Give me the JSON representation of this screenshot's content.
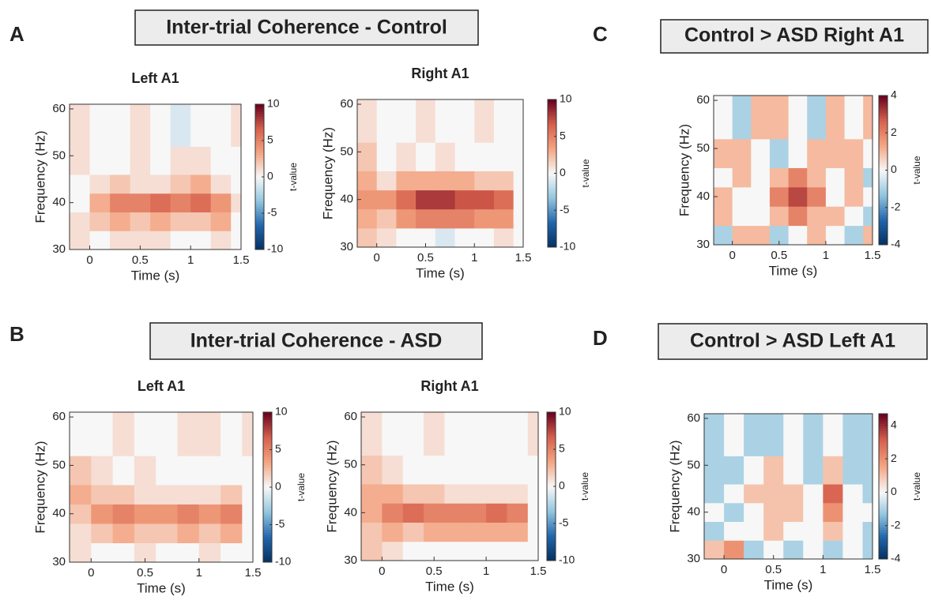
{
  "figure": {
    "colormap": [
      "#053061",
      "#2166ac",
      "#92c5de",
      "#f7f7f7",
      "#f4a582",
      "#d6604d",
      "#67001f"
    ],
    "panels": [
      {
        "label": "A",
        "title": "Inter-trial Coherence - Control"
      },
      {
        "label": "C",
        "title": "Control > ASD Right A1"
      },
      {
        "label": "B",
        "title": "Inter-trial Coherence - ASD"
      },
      {
        "label": "D",
        "title": "Control > ASD Left A1"
      }
    ]
  },
  "chart_data": [
    {
      "type": "heatmap",
      "title": "Left A1",
      "xlabel": "Time (s)",
      "ylabel": "Frequency (Hz)",
      "x_edges": [
        -0.2,
        0,
        0.2,
        0.4,
        0.6,
        0.8,
        1,
        1.2,
        1.4,
        1.5
      ],
      "y_edges": [
        30,
        34,
        38,
        42,
        46,
        52,
        61
      ],
      "z": [
        [
          1,
          0,
          1,
          1,
          1,
          0,
          0,
          1,
          0
        ],
        [
          1,
          2,
          3,
          2,
          3,
          2,
          2,
          3,
          0
        ],
        [
          0,
          3,
          5,
          5,
          6,
          5,
          6,
          4,
          1
        ],
        [
          0,
          1,
          2,
          1,
          1,
          2,
          3,
          1,
          0
        ],
        [
          1,
          0,
          0,
          1,
          0,
          1,
          1,
          0,
          0
        ],
        [
          1,
          0,
          0,
          1,
          0,
          -1,
          0,
          0,
          1
        ]
      ],
      "xlim": [
        -0.2,
        1.5
      ],
      "ylim": [
        30,
        61
      ],
      "xticks": [
        0,
        0.5,
        1,
        1.5
      ],
      "yticks": [
        30,
        40,
        50,
        60
      ],
      "colorbar": {
        "label": "t-value",
        "lim": [
          -10,
          10
        ],
        "ticks": [
          -10,
          -5,
          0,
          5,
          10
        ]
      }
    },
    {
      "type": "heatmap",
      "title": "Right A1",
      "xlabel": "Time (s)",
      "ylabel": "Frequency (Hz)",
      "x_edges": [
        -0.2,
        0,
        0.2,
        0.4,
        0.6,
        0.8,
        1,
        1.2,
        1.4,
        1.5
      ],
      "y_edges": [
        30,
        34,
        38,
        42,
        46,
        52,
        61
      ],
      "z": [
        [
          2,
          1,
          0,
          0,
          -1,
          0,
          0,
          1,
          0
        ],
        [
          3,
          2,
          4,
          5,
          5,
          5,
          4,
          4,
          0
        ],
        [
          4,
          4,
          6,
          8,
          8,
          7,
          7,
          6,
          0
        ],
        [
          3,
          1,
          3,
          3,
          3,
          3,
          2,
          2,
          0
        ],
        [
          2,
          0,
          1,
          0,
          1,
          0,
          0,
          0,
          0
        ],
        [
          1,
          0,
          0,
          1,
          0,
          0,
          1,
          0,
          0
        ]
      ],
      "xlim": [
        -0.2,
        1.5
      ],
      "ylim": [
        30,
        61
      ],
      "xticks": [
        0,
        0.5,
        1,
        1.5
      ],
      "yticks": [
        30,
        40,
        50,
        60
      ],
      "colorbar": {
        "label": "t-value",
        "lim": [
          -10,
          10
        ],
        "ticks": [
          -10,
          -5,
          0,
          5,
          10
        ]
      }
    },
    {
      "type": "heatmap",
      "xlabel": "Time (s)",
      "ylabel": "Frequency (Hz)",
      "x_edges": [
        -0.2,
        0,
        0.2,
        0.4,
        0.6,
        0.8,
        1,
        1.2,
        1.4,
        1.5
      ],
      "y_edges": [
        30,
        34,
        38,
        42,
        46,
        52,
        61
      ],
      "z": [
        [
          -1,
          1,
          1,
          -1,
          0,
          1,
          0,
          -1,
          1
        ],
        [
          1,
          0,
          0,
          1,
          2,
          1,
          1,
          0,
          -1
        ],
        [
          1,
          0,
          0,
          2,
          3,
          2,
          0,
          1,
          0
        ],
        [
          0,
          1,
          0,
          1,
          2,
          1,
          0,
          1,
          -1
        ],
        [
          1,
          1,
          0,
          -1,
          0,
          1,
          1,
          1,
          0
        ],
        [
          0,
          -1,
          1,
          1,
          0,
          -1,
          1,
          0,
          1
        ]
      ],
      "xlim": [
        -0.2,
        1.5
      ],
      "ylim": [
        30,
        61
      ],
      "xticks": [
        0,
        0.5,
        1,
        1.5
      ],
      "yticks": [
        30,
        40,
        50,
        60
      ],
      "colorbar": {
        "label": "t-value",
        "lim": [
          -4,
          4
        ],
        "ticks": [
          -4,
          -2,
          0,
          2,
          4
        ]
      }
    },
    {
      "type": "heatmap",
      "title": "Left A1",
      "xlabel": "Time (s)",
      "ylabel": "Frequency (Hz)",
      "x_edges": [
        -0.2,
        0,
        0.2,
        0.4,
        0.6,
        0.8,
        1,
        1.2,
        1.4,
        1.5
      ],
      "y_edges": [
        30,
        34,
        38,
        42,
        46,
        52,
        61
      ],
      "z": [
        [
          1,
          0,
          0,
          1,
          0,
          0,
          1,
          0,
          0
        ],
        [
          1,
          2,
          3,
          2,
          2,
          3,
          2,
          3,
          0
        ],
        [
          2,
          4,
          5,
          4,
          4,
          5,
          4,
          5,
          0
        ],
        [
          3,
          2,
          2,
          1,
          1,
          1,
          1,
          2,
          0
        ],
        [
          2,
          1,
          0,
          1,
          0,
          0,
          0,
          0,
          0
        ],
        [
          0,
          0,
          1,
          0,
          0,
          1,
          1,
          0,
          1
        ]
      ],
      "xlim": [
        -0.2,
        1.5
      ],
      "ylim": [
        30,
        61
      ],
      "xticks": [
        0,
        0.5,
        1,
        1.5
      ],
      "yticks": [
        30,
        40,
        50,
        60
      ],
      "colorbar": {
        "label": "t-value",
        "lim": [
          -10,
          10
        ],
        "ticks": [
          -10,
          -5,
          0,
          5,
          10
        ]
      }
    },
    {
      "type": "heatmap",
      "title": "Right A1",
      "xlabel": "Time (s)",
      "ylabel": "Frequency (Hz)",
      "x_edges": [
        -0.2,
        0,
        0.2,
        0.4,
        0.6,
        0.8,
        1,
        1.2,
        1.4,
        1.5
      ],
      "y_edges": [
        30,
        34,
        38,
        42,
        46,
        52,
        61
      ],
      "z": [
        [
          2,
          1,
          0,
          0,
          0,
          0,
          0,
          0,
          0
        ],
        [
          2,
          3,
          2,
          3,
          3,
          3,
          3,
          3,
          0
        ],
        [
          3,
          5,
          6,
          5,
          5,
          5,
          6,
          5,
          0
        ],
        [
          3,
          3,
          2,
          2,
          1,
          1,
          1,
          1,
          0
        ],
        [
          2,
          1,
          0,
          0,
          0,
          0,
          0,
          0,
          0
        ],
        [
          1,
          0,
          0,
          1,
          0,
          0,
          0,
          0,
          1
        ]
      ],
      "xlim": [
        -0.2,
        1.5
      ],
      "ylim": [
        30,
        61
      ],
      "xticks": [
        0,
        0.5,
        1,
        1.5
      ],
      "yticks": [
        30,
        40,
        50,
        60
      ],
      "colorbar": {
        "label": "t-value",
        "lim": [
          -10,
          10
        ],
        "ticks": [
          -10,
          -5,
          0,
          5,
          10
        ]
      }
    },
    {
      "type": "heatmap",
      "xlabel": "Time (s)",
      "ylabel": "Frequency (Hz)",
      "x_edges": [
        -0.2,
        0,
        0.2,
        0.4,
        0.6,
        0.8,
        1,
        1.2,
        1.4,
        1.5
      ],
      "y_edges": [
        30,
        34,
        38,
        42,
        46,
        52,
        61
      ],
      "z": [
        [
          1,
          2,
          -1,
          0,
          -1,
          0,
          -1,
          0,
          -1
        ],
        [
          -1,
          0,
          0,
          1,
          0,
          0,
          1,
          0,
          -1
        ],
        [
          0,
          -1,
          0,
          1,
          1,
          0,
          2,
          0,
          0
        ],
        [
          -1,
          0,
          1,
          1,
          1,
          0,
          3,
          0,
          -1
        ],
        [
          -1,
          -1,
          0,
          1,
          0,
          -1,
          1,
          -1,
          -1
        ],
        [
          -1,
          0,
          -1,
          -1,
          0,
          -1,
          0,
          -1,
          -1
        ]
      ],
      "xlim": [
        -0.2,
        1.5
      ],
      "ylim": [
        30,
        61
      ],
      "xticks": [
        0,
        0.5,
        1,
        1.5
      ],
      "yticks": [
        30,
        40,
        50,
        60
      ],
      "colorbar": {
        "label": "t-value",
        "lim": [
          -4,
          4.7
        ],
        "ticks": [
          -4,
          -2,
          0,
          2,
          4
        ]
      }
    }
  ]
}
